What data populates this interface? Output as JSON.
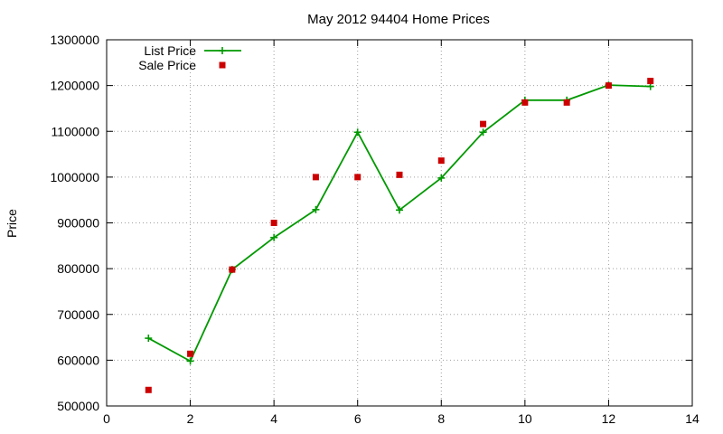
{
  "chart_data": {
    "type": "line",
    "title": "May 2012 94404 Home Prices",
    "xlabel": "",
    "ylabel": "Price",
    "xlim": [
      0,
      14
    ],
    "ylim": [
      500000,
      1300000
    ],
    "x_ticks": [
      0,
      2,
      4,
      6,
      8,
      10,
      12,
      14
    ],
    "y_ticks": [
      500000,
      600000,
      700000,
      800000,
      900000,
      1000000,
      1100000,
      1200000,
      1300000
    ],
    "x_tick_labels": [
      "0",
      "2",
      "4",
      "6",
      "8",
      "10",
      "12",
      "14"
    ],
    "y_tick_labels": [
      "500000",
      "600000",
      "700000",
      "800000",
      "900000",
      "1000000",
      "1100000",
      "1200000",
      "1300000"
    ],
    "grid": true,
    "legend_position": "top-left",
    "series": [
      {
        "name": "List Price",
        "style": "line-with-plus-markers",
        "color": "#009900",
        "x": [
          1,
          2,
          3,
          4,
          5,
          6,
          7,
          8,
          9,
          10,
          11,
          12,
          13
        ],
        "y": [
          648000,
          598000,
          798000,
          868000,
          929000,
          1098000,
          928000,
          998000,
          1098000,
          1168000,
          1168000,
          1201000,
          1198000
        ]
      },
      {
        "name": "Sale Price",
        "style": "square-points",
        "color": "#cc0000",
        "x": [
          1,
          2,
          3,
          4,
          5,
          6,
          7,
          8,
          9,
          10,
          11,
          12,
          13
        ],
        "y": [
          535000,
          614000,
          798000,
          900000,
          1000000,
          1000000,
          1005000,
          1036000,
          1116000,
          1163000,
          1163000,
          1200000,
          1210000
        ]
      }
    ]
  }
}
